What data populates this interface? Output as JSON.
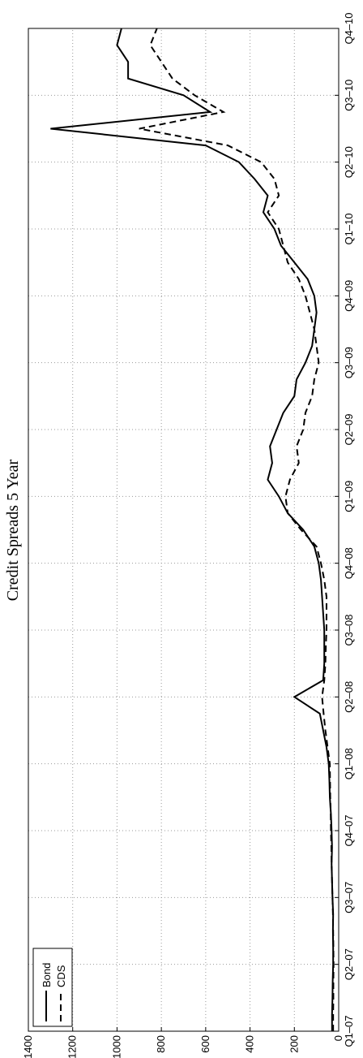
{
  "chart_data": {
    "type": "line",
    "title": "Credit Spreads 5 Year",
    "x": [
      0,
      0.25,
      0.5,
      0.75,
      1,
      1.25,
      1.5,
      1.75,
      2,
      2.25,
      2.5,
      2.75,
      3,
      3.25,
      3.5,
      3.75,
      4,
      4.25,
      4.5,
      4.75,
      5,
      5.25,
      5.5,
      5.75,
      6,
      6.25,
      6.5,
      6.75,
      7,
      7.25,
      7.5,
      7.75,
      8,
      8.25,
      8.5,
      8.75,
      9,
      9.25,
      9.5,
      9.75,
      10,
      10.25,
      10.5,
      10.75,
      11,
      11.25,
      11.5,
      11.75,
      12,
      12.25,
      12.5,
      12.75,
      13,
      13.25,
      13.5,
      13.75,
      14,
      14.25,
      14.5,
      14.75,
      15
    ],
    "series": [
      {
        "name": "Bond",
        "color": "#000000",
        "dash": false,
        "values": [
          30,
          30,
          28,
          27,
          25,
          25,
          26,
          25,
          28,
          30,
          32,
          30,
          32,
          35,
          40,
          42,
          45,
          55,
          70,
          85,
          200,
          70,
          65,
          65,
          65,
          70,
          75,
          80,
          90,
          110,
          160,
          230,
          270,
          320,
          300,
          310,
          280,
          250,
          200,
          190,
          150,
          120,
          110,
          100,
          110,
          140,
          200,
          260,
          290,
          340,
          320,
          380,
          450,
          600,
          1300,
          580,
          700,
          950,
          950,
          1000,
          980
        ]
      },
      {
        "name": "CDS",
        "color": "#000000",
        "dash": true,
        "values": [
          25,
          25,
          24,
          24,
          23,
          24,
          25,
          26,
          28,
          30,
          32,
          33,
          35,
          36,
          38,
          39,
          40,
          50,
          60,
          68,
          75,
          65,
          60,
          58,
          55,
          55,
          55,
          65,
          80,
          100,
          170,
          230,
          240,
          220,
          180,
          190,
          160,
          150,
          120,
          110,
          90,
          100,
          110,
          130,
          150,
          180,
          230,
          250,
          270,
          320,
          270,
          290,
          350,
          500,
          900,
          520,
          650,
          750,
          800,
          850,
          820
        ]
      }
    ],
    "xlim": [
      0,
      15
    ],
    "xticks": [
      {
        "value": 0,
        "label": "Q1–07"
      },
      {
        "value": 1,
        "label": "Q2–07"
      },
      {
        "value": 2,
        "label": "Q3–07"
      },
      {
        "value": 3,
        "label": "Q4–07"
      },
      {
        "value": 4,
        "label": "Q1–08"
      },
      {
        "value": 5,
        "label": "Q2–08"
      },
      {
        "value": 6,
        "label": "Q3–08"
      },
      {
        "value": 7,
        "label": "Q4–08"
      },
      {
        "value": 8,
        "label": "Q1–09"
      },
      {
        "value": 9,
        "label": "Q2–09"
      },
      {
        "value": 10,
        "label": "Q3–09"
      },
      {
        "value": 11,
        "label": "Q4–09"
      },
      {
        "value": 12,
        "label": "Q1–10"
      },
      {
        "value": 13,
        "label": "Q2–10"
      },
      {
        "value": 14,
        "label": "Q3–10"
      },
      {
        "value": 15,
        "label": "Q4–10"
      }
    ],
    "ylim": [
      0,
      1400
    ],
    "yticks": [
      0,
      200,
      400,
      600,
      800,
      1000,
      1200,
      1400
    ],
    "grid": true,
    "legend": "upper-left"
  }
}
